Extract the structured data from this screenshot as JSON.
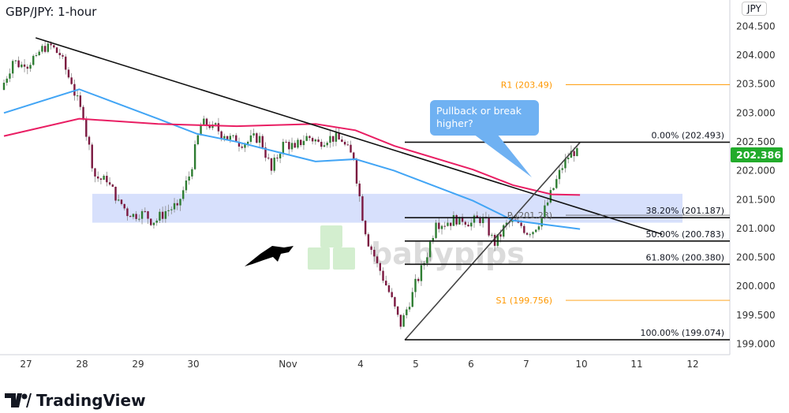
{
  "header": {
    "title": "GBP/JPY: 1-hour",
    "currency": "JPY"
  },
  "branding": {
    "tradingview": "TradingView",
    "watermark": "babypips"
  },
  "annotation": {
    "callout": "Pullback or break higher?"
  },
  "colors": {
    "bull": "#2e7d32",
    "bear": "#7b1840",
    "ma_fast": "#42a5f5",
    "ma_slow": "#e91e63",
    "pivot": "#ff9800",
    "zone": "#c9d6fb",
    "price_tag": "#22ab2b"
  },
  "chart_data": {
    "type": "candlestick",
    "title": "GBP/JPY: 1-hour",
    "ylim": [
      198.9,
      204.55
    ],
    "y_ticks": [
      "204.500",
      "204.000",
      "203.500",
      "203.000",
      "202.500",
      "202.000",
      "201.500",
      "201.000",
      "200.500",
      "200.000",
      "199.500",
      "199.000"
    ],
    "x_ticks": [
      "27",
      "28",
      "29",
      "30",
      "Nov",
      "4",
      "5",
      "6",
      "7",
      "10",
      "11",
      "12"
    ],
    "last_price": "202.386",
    "closes": [
      203.4,
      203.9,
      203.8,
      204.0,
      204.2,
      204.0,
      203.5,
      202.9,
      201.9,
      201.8,
      201.5,
      201.2,
      201.3,
      201.1,
      201.3,
      201.4,
      201.9,
      202.8,
      202.8,
      202.6,
      202.5,
      202.5,
      202.6,
      202.0,
      202.5,
      202.4,
      202.6,
      202.5,
      202.6,
      202.5,
      202.2,
      200.9,
      200.4,
      199.9,
      199.3,
      199.9,
      200.4,
      201.1,
      201.1,
      201.2,
      201.1,
      201.2,
      200.7,
      201.1,
      201.1,
      200.9,
      201.2,
      201.7,
      202.2,
      202.39
    ],
    "ma_fast": [
      [
        0,
        203.0
      ],
      [
        6.4,
        203.41
      ],
      [
        13.1,
        202.9
      ],
      [
        16.4,
        202.64
      ],
      [
        19.8,
        202.5
      ],
      [
        26.5,
        202.16
      ],
      [
        29.9,
        202.2
      ],
      [
        33.2,
        202.0
      ],
      [
        39.9,
        201.48
      ],
      [
        43.3,
        201.14
      ],
      [
        49,
        200.99
      ]
    ],
    "ma_slow": [
      [
        0,
        202.6
      ],
      [
        6.4,
        202.9
      ],
      [
        13.1,
        202.81
      ],
      [
        19.8,
        202.77
      ],
      [
        26.5,
        202.81
      ],
      [
        29.9,
        202.7
      ],
      [
        33.2,
        202.43
      ],
      [
        39.9,
        202.02
      ],
      [
        43.3,
        201.75
      ],
      [
        46.6,
        201.59
      ],
      [
        49,
        201.58
      ]
    ],
    "fibonacci": [
      {
        "label": "0.00% (202.493)",
        "value": 202.493
      },
      {
        "label": "38.20% (201.187)",
        "value": 201.187
      },
      {
        "label": "50.00% (200.783)",
        "value": 200.783
      },
      {
        "label": "61.80% (200.380)",
        "value": 200.38
      },
      {
        "label": "100.00% (199.074)",
        "value": 199.074
      }
    ],
    "pivots": [
      {
        "label": "R1 (203.49)",
        "value": 203.49
      },
      {
        "label": "P (201.23)",
        "value": 201.23
      },
      {
        "label": "S1 (199.756)",
        "value": 199.756
      }
    ],
    "zone": [
      201.1,
      201.6
    ],
    "trendlines": [
      {
        "from": [
          2.7,
          204.3
        ],
        "to": [
          56,
          200.9
        ]
      },
      {
        "from": [
          34.1,
          199.07
        ],
        "to": [
          49,
          202.49
        ]
      }
    ]
  }
}
